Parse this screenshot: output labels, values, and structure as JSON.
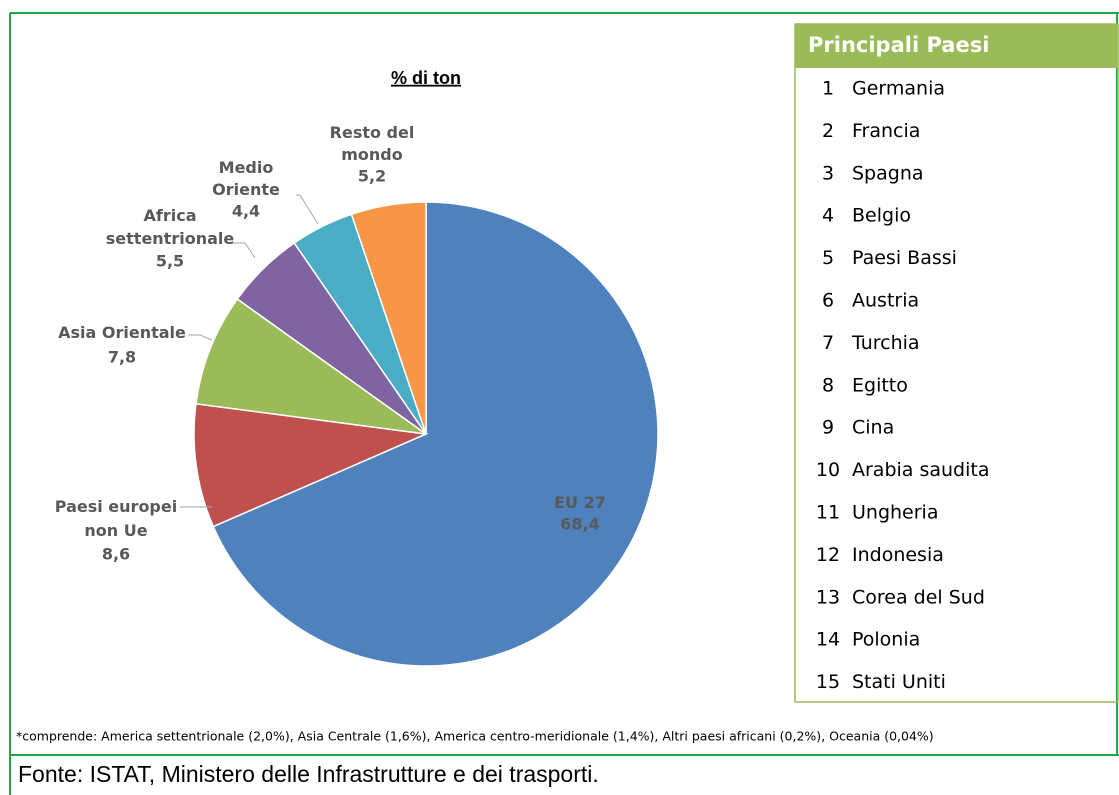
{
  "chart_data": {
    "type": "pie",
    "title": "% di ton",
    "categories": [
      "EU 27",
      "Paesi europei\nnon Ue",
      "Asia Orientale",
      "Africa\nsettentrionale",
      "Medio\nOriente",
      "Resto del\nmondo"
    ],
    "values": [
      68.4,
      8.6,
      7.8,
      5.5,
      4.4,
      5.2
    ],
    "value_labels": [
      "68,4",
      "8,6",
      "7,8",
      "5,5",
      "4,4",
      "5,2"
    ],
    "colors": [
      "#4f81bd",
      "#c0504d",
      "#9bbb59",
      "#8064a2",
      "#4bacc6",
      "#f79646"
    ]
  },
  "table": {
    "title": "Principali Paesi",
    "rows": [
      [
        "1",
        "Germania"
      ],
      [
        "2",
        "Francia"
      ],
      [
        "3",
        "Spagna"
      ],
      [
        "4",
        "Belgio"
      ],
      [
        "5",
        "Paesi Bassi"
      ],
      [
        "6",
        "Austria"
      ],
      [
        "7",
        "Turchia"
      ],
      [
        "8",
        "Egitto"
      ],
      [
        "9",
        "Cina"
      ],
      [
        "10",
        "Arabia saudita"
      ],
      [
        "11",
        "Ungheria"
      ],
      [
        "12",
        "Indonesia"
      ],
      [
        "13",
        "Corea del Sud"
      ],
      [
        "14",
        "Polonia"
      ],
      [
        "15",
        "Stati Uniti"
      ]
    ]
  },
  "footnote": "*comprende: America settentrionale (2,0%), Asia Centrale (1,6%), America centro-meridionale (1,4%), Altri paesi africani (0,2%), Oceania (0,04%)",
  "source": "Fonte: ISTAT, Ministero delle Infrastrutture e dei trasporti."
}
